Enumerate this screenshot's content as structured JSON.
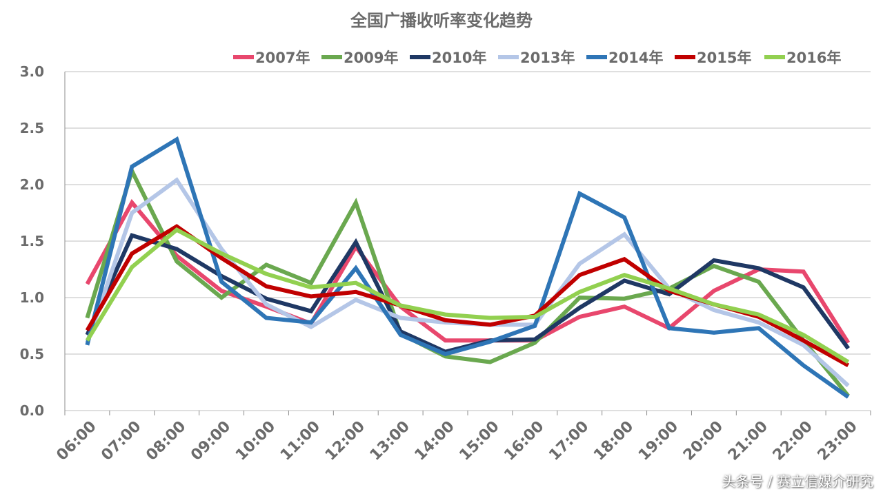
{
  "chart_data": {
    "type": "line",
    "title": "全国广播收听率变化趋势",
    "categories": [
      "06:00",
      "07:00",
      "08:00",
      "09:00",
      "10:00",
      "11:00",
      "12:00",
      "13:00",
      "14:00",
      "15:00",
      "16:00",
      "17:00",
      "18:00",
      "19:00",
      "20:00",
      "21:00",
      "22:00",
      "23:00"
    ],
    "ylim": [
      0,
      3
    ],
    "yticks": [
      "0.0",
      "0.5",
      "1.0",
      "1.5",
      "2.0",
      "2.5",
      "3.0"
    ],
    "grid": true,
    "legend_position": "top",
    "series": [
      {
        "name": "2007年",
        "color": "#e8476d",
        "values": [
          1.12,
          1.84,
          1.37,
          1.06,
          0.92,
          0.77,
          1.45,
          0.92,
          0.62,
          0.62,
          0.62,
          0.83,
          0.92,
          0.73,
          1.06,
          1.25,
          1.23,
          0.6
        ]
      },
      {
        "name": "2009年",
        "color": "#6aa84f",
        "values": [
          0.82,
          2.12,
          1.32,
          1.0,
          1.29,
          1.13,
          1.84,
          0.68,
          0.48,
          0.43,
          0.6,
          1.0,
          0.99,
          1.08,
          1.28,
          1.14,
          0.62,
          0.13
        ]
      },
      {
        "name": "2010年",
        "color": "#1f3864",
        "values": [
          0.67,
          1.55,
          1.43,
          1.19,
          0.99,
          0.88,
          1.49,
          0.7,
          0.52,
          0.62,
          0.63,
          0.91,
          1.15,
          1.03,
          1.33,
          1.26,
          1.09,
          0.55
        ]
      },
      {
        "name": "2013年",
        "color": "#b4c6e7",
        "values": [
          0.6,
          1.75,
          2.04,
          1.43,
          0.94,
          0.74,
          0.98,
          0.82,
          0.78,
          0.76,
          0.76,
          1.3,
          1.56,
          1.08,
          0.89,
          0.78,
          0.58,
          0.22
        ]
      },
      {
        "name": "2014年",
        "color": "#2e75b6",
        "values": [
          0.58,
          2.16,
          2.4,
          1.14,
          0.82,
          0.78,
          1.26,
          0.67,
          0.5,
          0.61,
          0.75,
          1.92,
          1.71,
          0.73,
          0.69,
          0.73,
          0.4,
          0.12
        ]
      },
      {
        "name": "2015年",
        "color": "#c00000",
        "values": [
          0.71,
          1.39,
          1.63,
          1.35,
          1.1,
          1.01,
          1.05,
          0.93,
          0.8,
          0.76,
          0.84,
          1.2,
          1.34,
          1.06,
          0.94,
          0.83,
          0.62,
          0.4
        ]
      },
      {
        "name": "2016年",
        "color": "#92d050",
        "values": [
          0.62,
          1.27,
          1.6,
          1.39,
          1.21,
          1.09,
          1.13,
          0.93,
          0.85,
          0.82,
          0.83,
          1.05,
          1.2,
          1.08,
          0.94,
          0.85,
          0.67,
          0.43
        ]
      }
    ]
  },
  "credit": "头条号 / 赛立信媒介研究"
}
